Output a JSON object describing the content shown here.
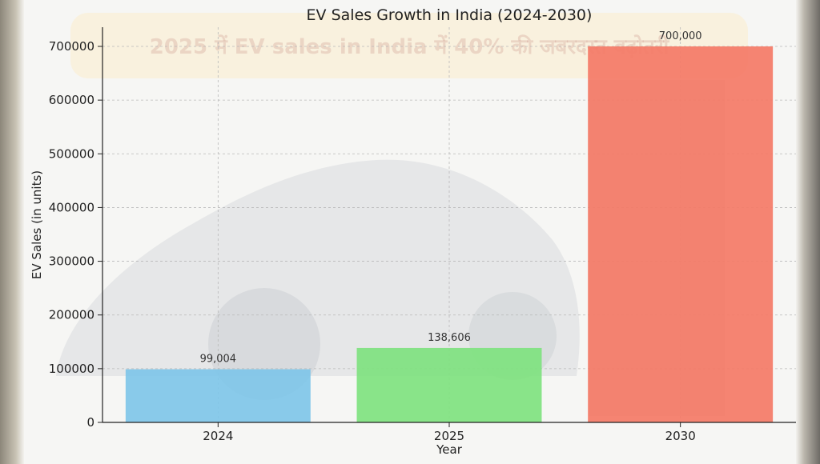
{
  "banner": {
    "text": "2025 में EV sales in India में 40% की जबरदस्त बढ़ोतरी"
  },
  "chart_data": {
    "type": "bar",
    "title": "EV Sales Growth in India (2024-2030)",
    "xlabel": "Year",
    "ylabel": "EV Sales (in units)",
    "categories": [
      "2024",
      "2025",
      "2030"
    ],
    "values": [
      99004,
      138606,
      700000
    ],
    "data_labels": [
      "99,004",
      "138,606",
      "700,000"
    ],
    "colors": [
      "#7fc6e8",
      "#7fe27f",
      "#f47a66"
    ],
    "ylim": [
      0,
      735000
    ],
    "yticks": [
      0,
      100000,
      200000,
      300000,
      400000,
      500000,
      600000,
      700000
    ],
    "ytick_labels": [
      "0",
      "100000",
      "200000",
      "300000",
      "400000",
      "500000",
      "600000",
      "700000"
    ],
    "grid": true,
    "legend": "none"
  }
}
